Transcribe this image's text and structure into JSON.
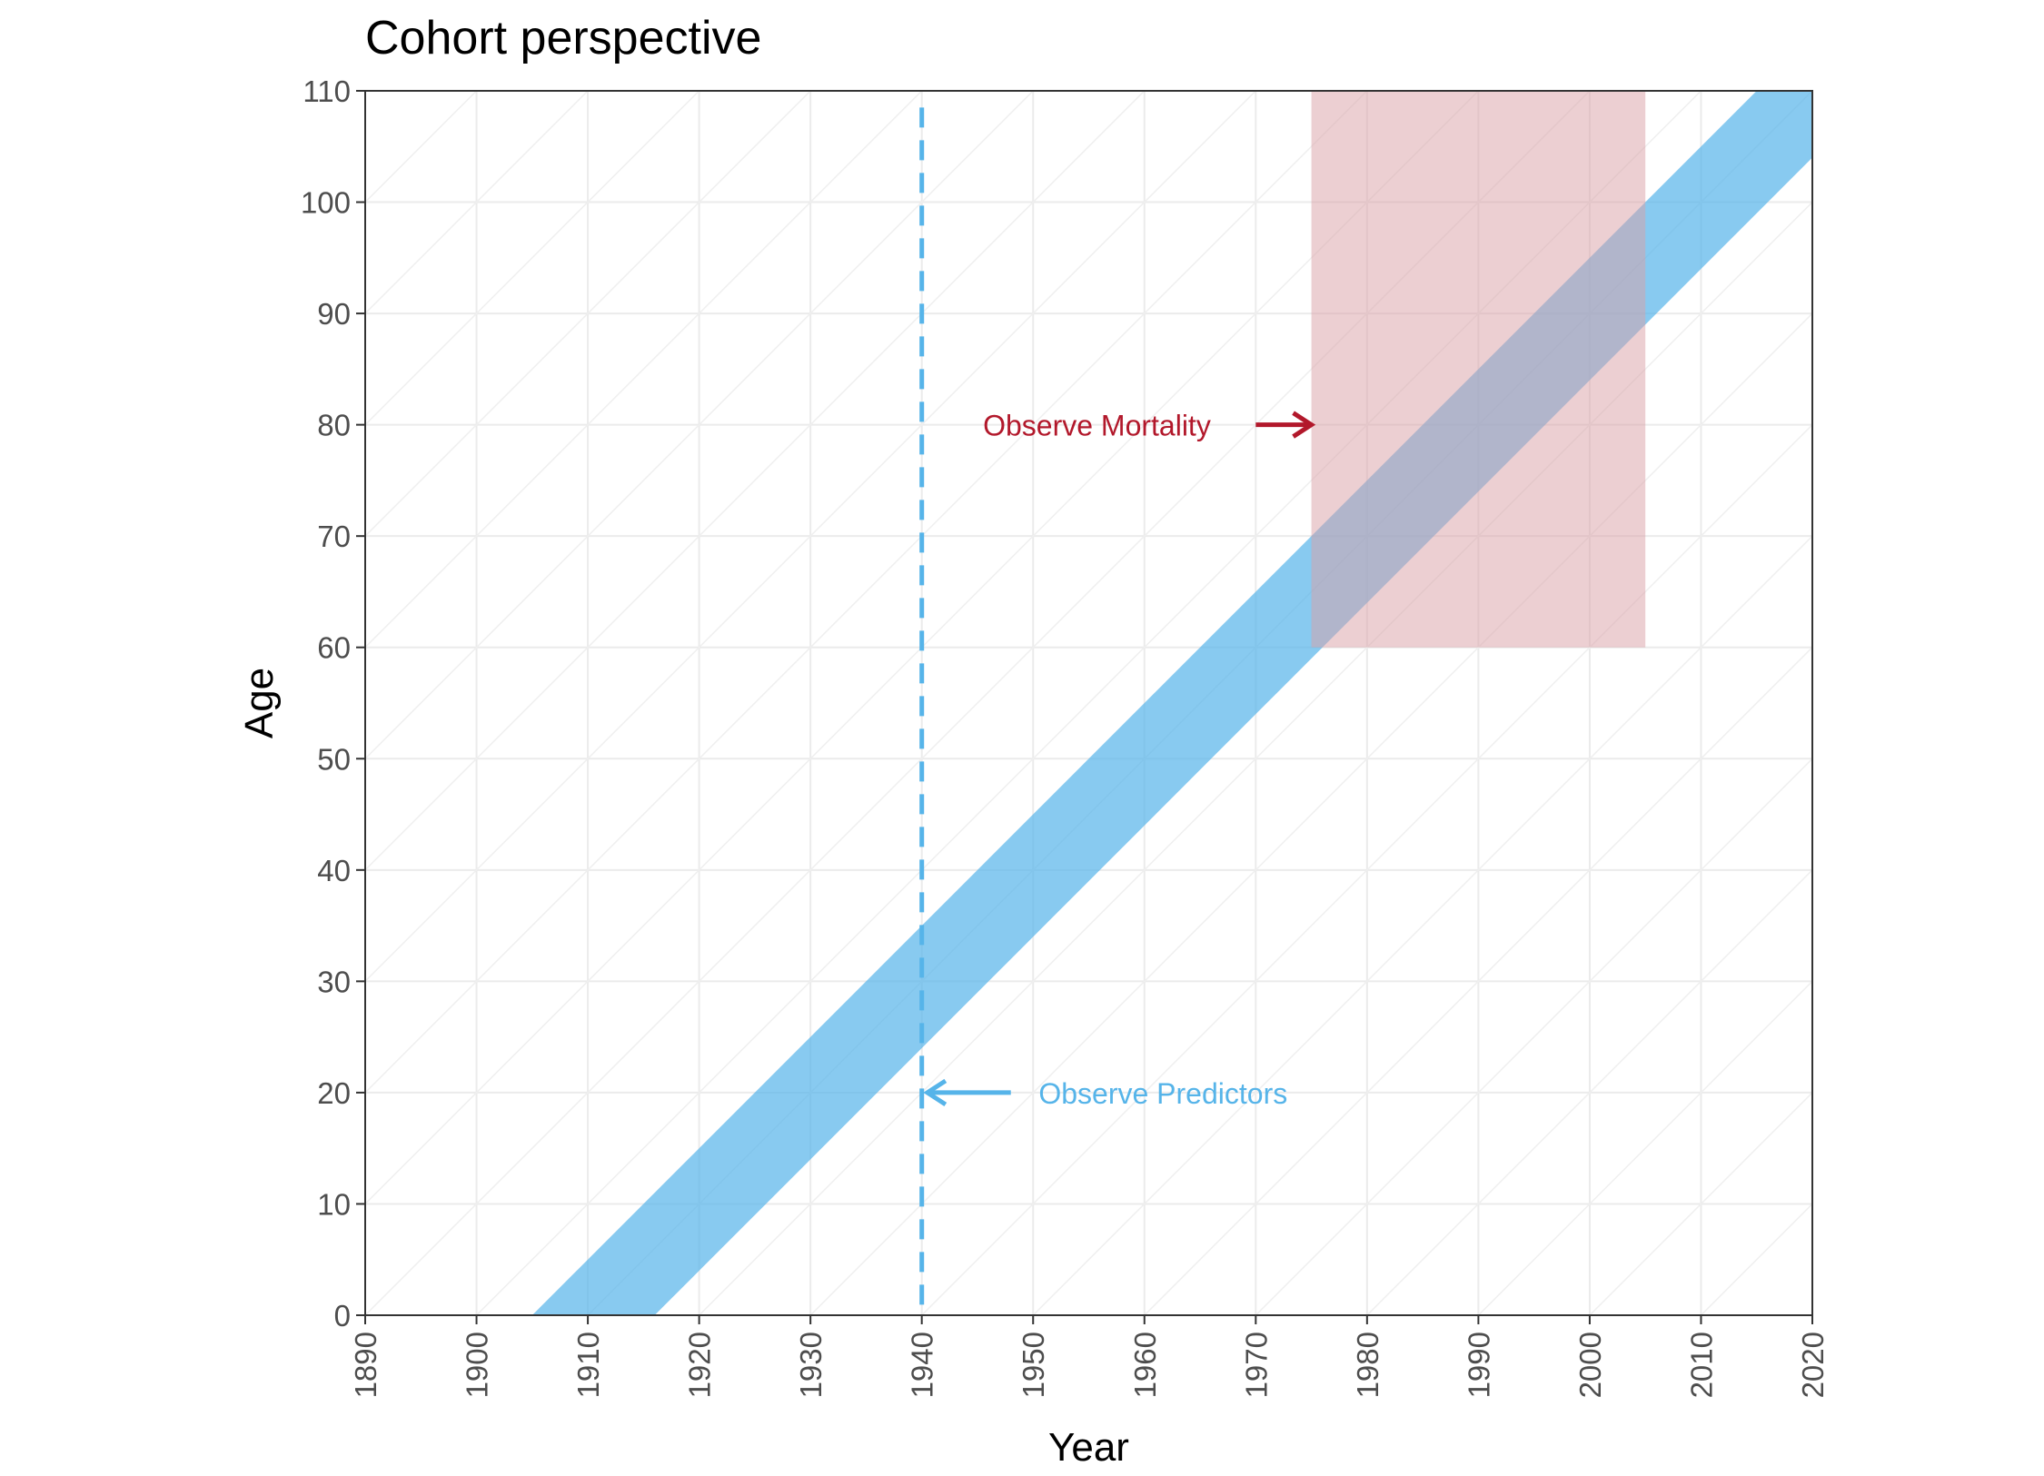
{
  "chart_data": {
    "type": "area",
    "title": "Cohort perspective",
    "xlabel": "Year",
    "ylabel": "Age",
    "xlim": [
      1890,
      2020
    ],
    "ylim": [
      0,
      110
    ],
    "xticks": [
      1890,
      1900,
      1910,
      1920,
      1930,
      1940,
      1950,
      1960,
      1970,
      1980,
      1990,
      2000,
      2010,
      2020
    ],
    "yticks": [
      0,
      10,
      20,
      30,
      40,
      50,
      60,
      70,
      80,
      90,
      100,
      110
    ],
    "grid": true,
    "lexis_diagonal_step_years": 10,
    "cohort_band": {
      "birth_year_start": 1905,
      "birth_year_end": 1916,
      "color": "#56B4E9"
    },
    "mortality_window": {
      "x": [
        1975,
        2005
      ],
      "y": [
        60,
        110
      ],
      "color": "#D9A0A5"
    },
    "predictor_year": {
      "x": 1940,
      "color": "#56B4E9",
      "style": "dashed"
    },
    "annotations": [
      {
        "text": "Observe Mortality",
        "x": 1945.5,
        "y": 80,
        "arrow_from_x": 1970,
        "arrow_to_x": 1975,
        "color": "#B2182B"
      },
      {
        "text": "Observe Predictors",
        "x": 1950.5,
        "y": 20,
        "arrow_from_x": 1948,
        "arrow_to_x": 1940.5,
        "color": "#56B4E9"
      }
    ]
  }
}
